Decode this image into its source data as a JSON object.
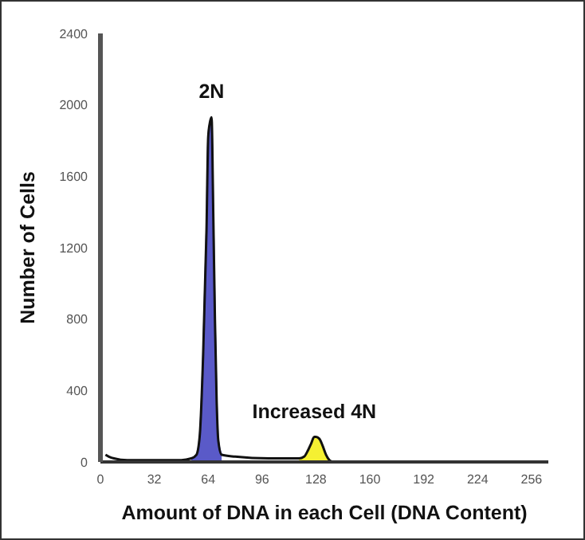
{
  "chart_data": {
    "type": "area",
    "xlabel": "Amount of DNA in each Cell (DNA Content)",
    "ylabel": "Number of Cells",
    "xlim": [
      0,
      266
    ],
    "xticks": [
      0,
      32,
      64,
      96,
      128,
      160,
      192,
      224,
      256
    ],
    "ylim": [
      0,
      2400
    ],
    "yticks": [
      0,
      400,
      800,
      1200,
      1600,
      2000,
      2400
    ],
    "series": [
      {
        "type": "area",
        "color": "#5a5ac8",
        "x": [
          54,
          57,
          59,
          61,
          63,
          64,
          65,
          66,
          67,
          68,
          69,
          70,
          72
        ],
        "values": [
          20,
          40,
          150,
          600,
          1300,
          1820,
          1900,
          1930,
          1400,
          800,
          350,
          120,
          40
        ]
      },
      {
        "type": "area",
        "color": "#f5f032",
        "x": [
          118,
          121,
          123,
          125,
          127,
          128,
          130,
          132,
          134,
          136,
          138
        ],
        "values": [
          20,
          30,
          60,
          100,
          140,
          140,
          130,
          90,
          40,
          10,
          0
        ]
      },
      {
        "type": "line",
        "color": "#111111",
        "x": [
          3,
          5,
          8,
          16,
          32,
          48,
          54,
          57,
          59,
          61,
          63,
          64,
          65,
          66,
          67,
          68,
          69,
          70,
          72,
          80,
          100,
          118,
          121,
          123,
          125,
          127,
          128,
          130,
          132,
          134,
          136,
          138
        ],
        "values": [
          40,
          30,
          20,
          10,
          10,
          10,
          20,
          40,
          150,
          600,
          1300,
          1820,
          1900,
          1930,
          1400,
          800,
          350,
          120,
          40,
          30,
          20,
          20,
          30,
          60,
          100,
          140,
          140,
          130,
          90,
          40,
          10,
          0
        ]
      }
    ],
    "annotations": [
      "2N",
      "Increased 4N"
    ]
  }
}
